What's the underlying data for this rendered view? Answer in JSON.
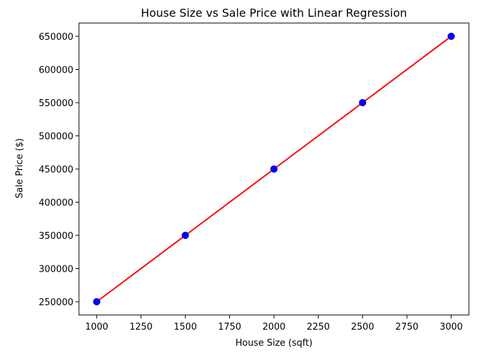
{
  "chart_data": {
    "type": "scatter",
    "title": "House Size vs Sale Price with Linear Regression",
    "xlabel": "House Size (sqft)",
    "ylabel": "Sale Price ($)",
    "xlim": [
      900,
      3100
    ],
    "ylim": [
      230000,
      670000
    ],
    "x_ticks": [
      1000,
      1250,
      1500,
      1750,
      2000,
      2250,
      2500,
      2750,
      3000
    ],
    "y_ticks": [
      250000,
      300000,
      350000,
      400000,
      450000,
      500000,
      550000,
      600000,
      650000
    ],
    "grid": false,
    "series": [
      {
        "type": "scatter",
        "x": [
          1000,
          1500,
          2000,
          2500,
          3000
        ],
        "y": [
          250000,
          350000,
          450000,
          550000,
          650000
        ],
        "color": "#0000ff"
      },
      {
        "type": "line",
        "x": [
          1000,
          1500,
          2000,
          2500,
          3000
        ],
        "y": [
          250000,
          350000,
          450000,
          550000,
          650000
        ],
        "color": "#ff0000"
      }
    ]
  }
}
